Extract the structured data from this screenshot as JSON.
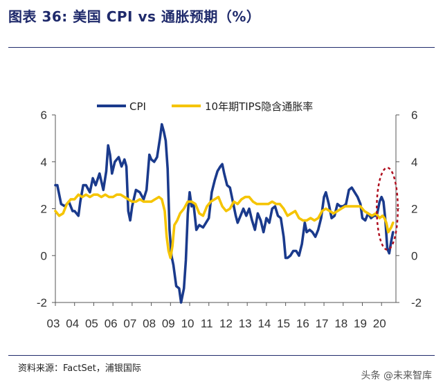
{
  "header": {
    "title": "图表 36:  美国 CPI vs 通胀预期（%）"
  },
  "footer": {
    "source": "资料来源：FactSet，浦银国际",
    "watermark": "头条 @未来智库"
  },
  "colors": {
    "cpi": "#1a3a8c",
    "breakeven": "#f5c400",
    "annotation": "#b01020",
    "rule": "#1f2a6b"
  },
  "chart_data": {
    "type": "line",
    "title": "",
    "xlabel": "",
    "ylabel": "",
    "x_ticks": [
      "03",
      "04",
      "05",
      "06",
      "07",
      "08",
      "09",
      "10",
      "11",
      "12",
      "13",
      "14",
      "15",
      "16",
      "17",
      "18",
      "19",
      "20"
    ],
    "x_range": [
      2003.0,
      2020.75
    ],
    "ylim": [
      -2,
      6
    ],
    "y_ticks_left": [
      "6",
      "4",
      "2",
      "0",
      "-2"
    ],
    "y_ticks_right": [
      "6",
      "4",
      "2",
      "0",
      "-2"
    ],
    "legend": {
      "placement": "top",
      "entries": [
        "CPI",
        "10年期TIPS隐含通胀率"
      ]
    },
    "grid": false,
    "series": [
      {
        "name": "CPI",
        "x": [
          2003.0,
          2003.1,
          2003.3,
          2003.5,
          2003.7,
          2003.9,
          2004.0,
          2004.2,
          2004.3,
          2004.45,
          2004.6,
          2004.8,
          2004.95,
          2005.1,
          2005.3,
          2005.5,
          2005.65,
          2005.75,
          2005.85,
          2005.95,
          2006.1,
          2006.3,
          2006.45,
          2006.6,
          2006.7,
          2006.8,
          2006.9,
          2007.0,
          2007.2,
          2007.4,
          2007.6,
          2007.75,
          2007.9,
          2008.0,
          2008.15,
          2008.3,
          2008.45,
          2008.55,
          2008.65,
          2008.75,
          2008.85,
          2008.95,
          2009.05,
          2009.15,
          2009.3,
          2009.45,
          2009.55,
          2009.7,
          2009.8,
          2009.9,
          2010.0,
          2010.1,
          2010.2,
          2010.35,
          2010.5,
          2010.7,
          2010.85,
          2011.0,
          2011.15,
          2011.3,
          2011.45,
          2011.6,
          2011.7,
          2011.8,
          2011.95,
          2012.1,
          2012.25,
          2012.4,
          2012.5,
          2012.65,
          2012.8,
          2012.95,
          2013.1,
          2013.25,
          2013.4,
          2013.55,
          2013.7,
          2013.85,
          2014.0,
          2014.15,
          2014.3,
          2014.45,
          2014.6,
          2014.75,
          2014.9,
          2015.0,
          2015.1,
          2015.25,
          2015.4,
          2015.55,
          2015.7,
          2015.85,
          2016.0,
          2016.1,
          2016.25,
          2016.4,
          2016.55,
          2016.7,
          2016.85,
          2017.0,
          2017.1,
          2017.25,
          2017.4,
          2017.55,
          2017.7,
          2017.85,
          2018.0,
          2018.15,
          2018.3,
          2018.45,
          2018.6,
          2018.75,
          2018.9,
          2019.0,
          2019.15,
          2019.3,
          2019.45,
          2019.6,
          2019.75,
          2019.9,
          2020.0,
          2020.1,
          2020.2,
          2020.3,
          2020.4,
          2020.5,
          2020.6
        ],
        "y": [
          3.0,
          3.0,
          2.2,
          2.1,
          2.3,
          1.9,
          1.9,
          1.7,
          2.3,
          3.0,
          3.0,
          2.7,
          3.3,
          3.0,
          3.5,
          2.8,
          3.6,
          4.7,
          4.3,
          3.5,
          4.0,
          4.2,
          3.8,
          4.1,
          3.8,
          1.9,
          1.5,
          2.1,
          2.8,
          2.7,
          2.4,
          2.8,
          4.3,
          4.1,
          4.0,
          4.2,
          5.0,
          5.6,
          5.3,
          4.9,
          3.7,
          1.1,
          0.0,
          -0.4,
          -1.3,
          -1.4,
          -2.0,
          -1.4,
          -0.2,
          1.8,
          2.7,
          2.1,
          2.2,
          1.1,
          1.3,
          1.2,
          1.4,
          1.6,
          2.7,
          3.2,
          3.6,
          3.8,
          3.9,
          3.5,
          3.0,
          2.9,
          2.3,
          1.7,
          1.4,
          1.7,
          2.0,
          1.7,
          2.0,
          1.5,
          1.1,
          1.8,
          1.5,
          1.0,
          1.6,
          1.4,
          2.0,
          2.1,
          1.7,
          1.6,
          0.8,
          -0.1,
          -0.1,
          0.0,
          0.2,
          0.2,
          0.0,
          0.5,
          1.4,
          1.0,
          1.1,
          1.0,
          0.8,
          1.1,
          1.6,
          2.5,
          2.7,
          2.2,
          1.6,
          1.7,
          2.2,
          2.1,
          2.1,
          2.2,
          2.8,
          2.9,
          2.7,
          2.5,
          2.2,
          1.6,
          1.5,
          1.8,
          1.6,
          1.7,
          1.7,
          2.3,
          2.5,
          2.3,
          1.5,
          0.3,
          0.1,
          0.6,
          1.0
        ]
      },
      {
        "name": "10年期TIPS隐含通胀率",
        "x": [
          2003.0,
          2003.2,
          2003.4,
          2003.6,
          2003.8,
          2004.0,
          2004.2,
          2004.4,
          2004.6,
          2004.8,
          2005.0,
          2005.2,
          2005.4,
          2005.6,
          2005.8,
          2006.0,
          2006.2,
          2006.4,
          2006.6,
          2006.8,
          2007.0,
          2007.2,
          2007.4,
          2007.6,
          2007.8,
          2008.0,
          2008.2,
          2008.4,
          2008.55,
          2008.7,
          2008.8,
          2008.9,
          2009.0,
          2009.1,
          2009.2,
          2009.35,
          2009.5,
          2009.7,
          2009.9,
          2010.1,
          2010.3,
          2010.5,
          2010.7,
          2010.9,
          2011.1,
          2011.3,
          2011.5,
          2011.7,
          2011.9,
          2012.1,
          2012.3,
          2012.5,
          2012.7,
          2012.9,
          2013.1,
          2013.3,
          2013.5,
          2013.7,
          2013.9,
          2014.1,
          2014.3,
          2014.5,
          2014.7,
          2014.9,
          2015.1,
          2015.3,
          2015.5,
          2015.7,
          2015.9,
          2016.1,
          2016.3,
          2016.5,
          2016.7,
          2016.9,
          2017.1,
          2017.3,
          2017.5,
          2017.7,
          2017.9,
          2018.1,
          2018.3,
          2018.5,
          2018.7,
          2018.9,
          2019.1,
          2019.3,
          2019.5,
          2019.7,
          2019.9,
          2020.05,
          2020.15,
          2020.25,
          2020.35,
          2020.5,
          2020.6
        ],
        "y": [
          1.9,
          1.7,
          1.8,
          2.2,
          2.4,
          2.4,
          2.6,
          2.5,
          2.6,
          2.5,
          2.6,
          2.6,
          2.5,
          2.6,
          2.5,
          2.5,
          2.6,
          2.6,
          2.5,
          2.4,
          2.3,
          2.3,
          2.4,
          2.3,
          2.3,
          2.3,
          2.4,
          2.5,
          2.4,
          1.9,
          0.8,
          0.2,
          -0.1,
          0.4,
          1.3,
          1.5,
          1.8,
          2.0,
          2.3,
          2.3,
          2.2,
          1.8,
          1.7,
          2.1,
          2.3,
          2.4,
          2.5,
          2.1,
          1.9,
          2.0,
          2.3,
          2.2,
          2.4,
          2.5,
          2.5,
          2.3,
          2.2,
          2.2,
          2.2,
          2.2,
          2.3,
          2.2,
          2.2,
          2.0,
          1.7,
          1.8,
          1.9,
          1.6,
          1.5,
          1.5,
          1.6,
          1.5,
          1.6,
          1.9,
          2.0,
          1.9,
          1.8,
          1.9,
          2.0,
          2.1,
          2.1,
          2.1,
          2.1,
          2.1,
          1.9,
          1.8,
          1.7,
          1.8,
          1.6,
          1.7,
          1.6,
          1.4,
          1.0,
          1.2,
          1.4
        ]
      }
    ],
    "annotation": {
      "type": "ellipse",
      "color": "#b01020",
      "x_center": 2020.3,
      "y_center": 2.0,
      "x_radius": 0.55,
      "y_radius": 1.75
    }
  }
}
